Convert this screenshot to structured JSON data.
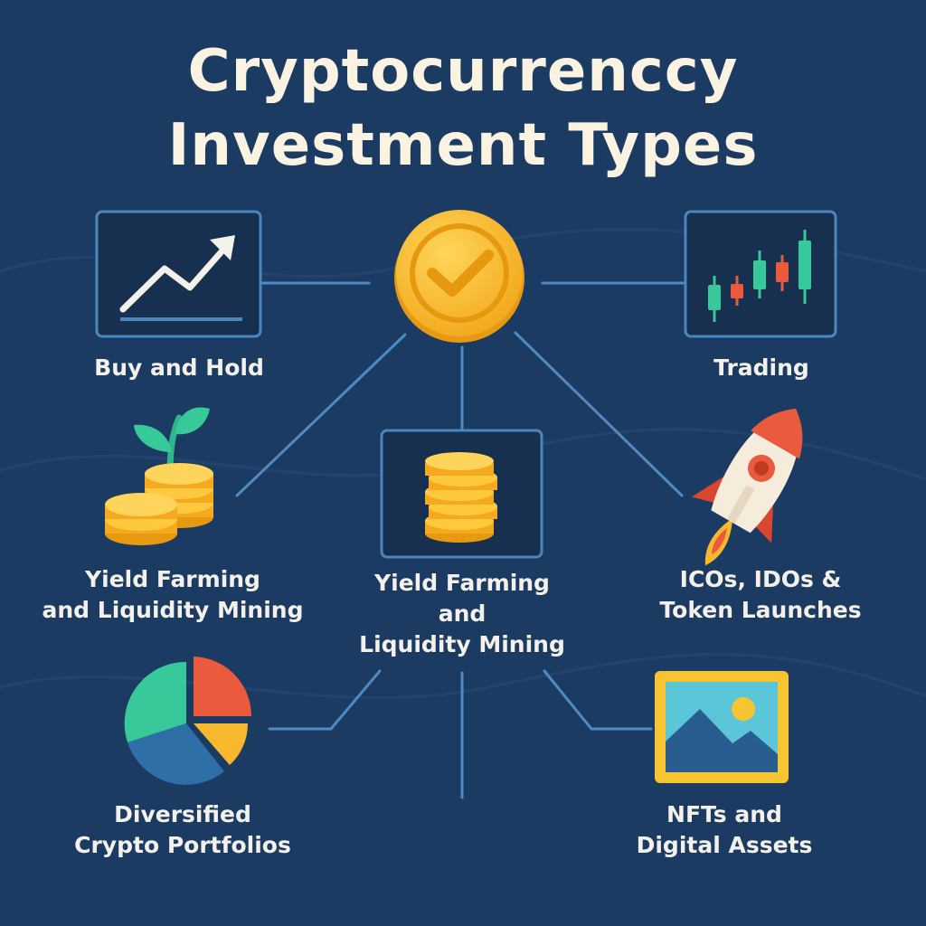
{
  "title": {
    "line1": "Cryptocurrenccy",
    "line2": "Investment Types"
  },
  "nodes": {
    "buy_hold": {
      "label": "Buy and Hold",
      "icon": "trend-chart-icon"
    },
    "trading": {
      "label": "Trading",
      "icon": "candlestick-chart-icon"
    },
    "center": {
      "icon": "gold-coin-checkmark-icon"
    },
    "yield_left": {
      "line1": "Yield Farming",
      "line2": "and Liquidity Mining",
      "icon": "coin-stack-sprout-icon"
    },
    "yield_center": {
      "line1": "Yield Farming",
      "line2": "and",
      "line3": "Liquidity Mining",
      "icon": "coin-stack-icon"
    },
    "icos": {
      "line1": "ICOs, IDOs &",
      "line2": "Token Launches",
      "icon": "rocket-icon"
    },
    "diversified": {
      "line1": "Diversified",
      "line2": "Crypto Portfolios",
      "icon": "pie-chart-icon"
    },
    "nfts": {
      "line1": "NFTs and",
      "line2": "Digital Assets",
      "icon": "framed-picture-icon"
    }
  },
  "colors": {
    "background": "#1c3b63",
    "box_fill": "#17304f",
    "box_border": "#4b86bf",
    "connector": "#4e8ac4",
    "title": "#fbf3e2",
    "label": "#f4f1ea",
    "gold": "#f7b82d",
    "green": "#37c99a",
    "red": "#ea5a3d"
  }
}
